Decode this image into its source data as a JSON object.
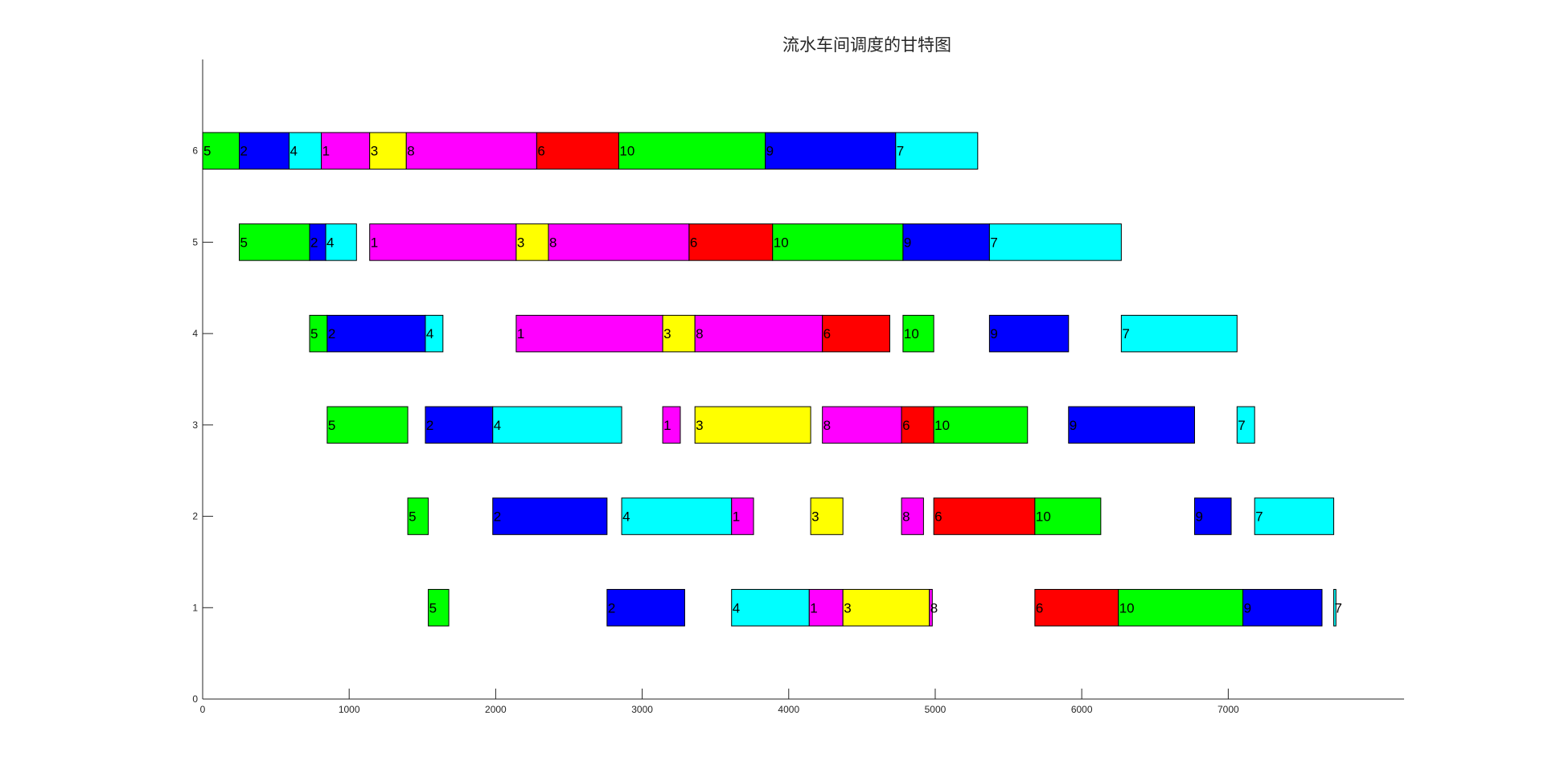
{
  "chart_data": {
    "type": "gantt",
    "title": "流水车间调度的甘特图",
    "xlabel": "",
    "ylabel": "",
    "xlim": [
      0,
      8200
    ],
    "ylim": [
      0,
      7
    ],
    "xticks": [
      0,
      1000,
      2000,
      3000,
      4000,
      5000,
      6000,
      7000
    ],
    "yticks": [
      0,
      1,
      2,
      3,
      4,
      5,
      6
    ],
    "grid": false,
    "colors": {
      "1": "#ff00ff",
      "2": "#0000ff",
      "3": "#ffff00",
      "4": "#00ffff",
      "5": "#00ff00",
      "6": "#ff0000",
      "7": "#00ffff",
      "8": "#ff00ff",
      "9": "#0000ff",
      "10": "#00ff00"
    },
    "rows": [
      {
        "machine": 6,
        "tasks": [
          {
            "job": "5",
            "start": 0,
            "end": 250
          },
          {
            "job": "2",
            "start": 250,
            "end": 590
          },
          {
            "job": "4",
            "start": 590,
            "end": 810
          },
          {
            "job": "1",
            "start": 810,
            "end": 1140
          },
          {
            "job": "3",
            "start": 1140,
            "end": 1390
          },
          {
            "job": "8",
            "start": 1390,
            "end": 2280
          },
          {
            "job": "6",
            "start": 2280,
            "end": 2840
          },
          {
            "job": "10",
            "start": 2840,
            "end": 3840
          },
          {
            "job": "9",
            "start": 3840,
            "end": 4730
          },
          {
            "job": "7",
            "start": 4730,
            "end": 5290
          }
        ]
      },
      {
        "machine": 5,
        "tasks": [
          {
            "job": "5",
            "start": 250,
            "end": 730
          },
          {
            "job": "2",
            "start": 730,
            "end": 840
          },
          {
            "job": "4",
            "start": 840,
            "end": 1050
          },
          {
            "job": "1",
            "start": 1140,
            "end": 2140
          },
          {
            "job": "3",
            "start": 2140,
            "end": 2360
          },
          {
            "job": "8",
            "start": 2360,
            "end": 3320
          },
          {
            "job": "6",
            "start": 3320,
            "end": 3890
          },
          {
            "job": "10",
            "start": 3890,
            "end": 4780
          },
          {
            "job": "9",
            "start": 4780,
            "end": 5370
          },
          {
            "job": "7",
            "start": 5370,
            "end": 6270
          }
        ]
      },
      {
        "machine": 4,
        "tasks": [
          {
            "job": "5",
            "start": 730,
            "end": 850
          },
          {
            "job": "2",
            "start": 850,
            "end": 1520
          },
          {
            "job": "4",
            "start": 1520,
            "end": 1640
          },
          {
            "job": "1",
            "start": 2140,
            "end": 3140
          },
          {
            "job": "3",
            "start": 3140,
            "end": 3360
          },
          {
            "job": "8",
            "start": 3360,
            "end": 4230
          },
          {
            "job": "6",
            "start": 4230,
            "end": 4690
          },
          {
            "job": "10",
            "start": 4780,
            "end": 4990
          },
          {
            "job": "9",
            "start": 5370,
            "end": 5910
          },
          {
            "job": "7",
            "start": 6270,
            "end": 7060
          }
        ]
      },
      {
        "machine": 3,
        "tasks": [
          {
            "job": "5",
            "start": 850,
            "end": 1400
          },
          {
            "job": "2",
            "start": 1520,
            "end": 1980
          },
          {
            "job": "4",
            "start": 1980,
            "end": 2860
          },
          {
            "job": "1",
            "start": 3140,
            "end": 3260
          },
          {
            "job": "3",
            "start": 3360,
            "end": 4150
          },
          {
            "job": "8",
            "start": 4230,
            "end": 4770
          },
          {
            "job": "6",
            "start": 4770,
            "end": 4990
          },
          {
            "job": "10",
            "start": 4990,
            "end": 5630
          },
          {
            "job": "9",
            "start": 5910,
            "end": 6770
          },
          {
            "job": "7",
            "start": 7060,
            "end": 7180
          }
        ]
      },
      {
        "machine": 2,
        "tasks": [
          {
            "job": "5",
            "start": 1400,
            "end": 1540
          },
          {
            "job": "2",
            "start": 1980,
            "end": 2760
          },
          {
            "job": "4",
            "start": 2860,
            "end": 3610
          },
          {
            "job": "1",
            "start": 3610,
            "end": 3760
          },
          {
            "job": "3",
            "start": 4150,
            "end": 4370
          },
          {
            "job": "8",
            "start": 4770,
            "end": 4920
          },
          {
            "job": "6",
            "start": 4990,
            "end": 5680
          },
          {
            "job": "10",
            "start": 5680,
            "end": 6130
          },
          {
            "job": "9",
            "start": 6770,
            "end": 7020
          },
          {
            "job": "7",
            "start": 7180,
            "end": 7720
          }
        ]
      },
      {
        "machine": 1,
        "tasks": [
          {
            "job": "5",
            "start": 1540,
            "end": 1680
          },
          {
            "job": "2",
            "start": 2760,
            "end": 3290
          },
          {
            "job": "4",
            "start": 3610,
            "end": 4140
          },
          {
            "job": "1",
            "start": 4140,
            "end": 4370
          },
          {
            "job": "3",
            "start": 4370,
            "end": 4960
          },
          {
            "job": "8",
            "start": 4960,
            "end": 4980
          },
          {
            "job": "6",
            "start": 5680,
            "end": 6250
          },
          {
            "job": "10",
            "start": 6250,
            "end": 7100
          },
          {
            "job": "9",
            "start": 7100,
            "end": 7640
          },
          {
            "job": "7",
            "start": 7720,
            "end": 7735
          }
        ]
      }
    ]
  }
}
